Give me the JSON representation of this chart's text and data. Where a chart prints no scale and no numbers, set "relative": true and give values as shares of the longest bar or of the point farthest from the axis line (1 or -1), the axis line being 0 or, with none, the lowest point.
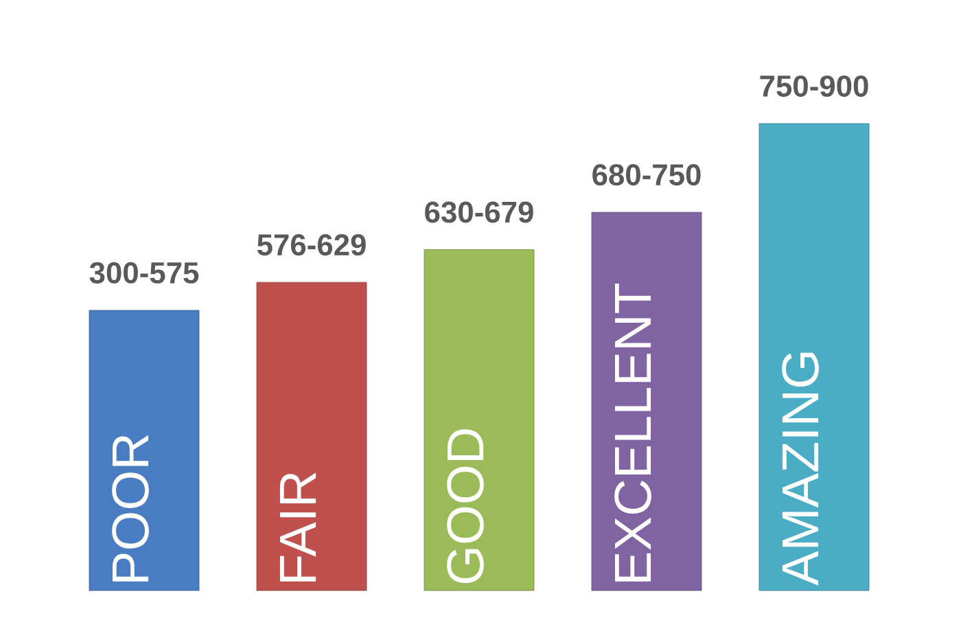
{
  "chart_data": {
    "type": "bar",
    "relative": true,
    "categories": [
      "POOR",
      "FAIR",
      "GOOD",
      "EXCELLENT",
      "AMAZING"
    ],
    "values": [
      0.6,
      0.66,
      0.73,
      0.81,
      1
    ],
    "colors": [
      "#4a7cc4",
      "#c0504d",
      "#9bbb59",
      "#8064a2",
      "#4bacc6"
    ],
    "annotations": [
      {
        "text": "300-575",
        "x": "POOR",
        "y": 0.6
      },
      {
        "text": "576-629",
        "x": "FAIR",
        "y": 0.66
      },
      {
        "text": "630-679",
        "x": "GOOD",
        "y": 0.73
      },
      {
        "text": "680-750",
        "x": "EXCELLENT",
        "y": 0.81
      },
      {
        "text": "750-900",
        "x": "AMAZING",
        "y": 1
      }
    ]
  }
}
